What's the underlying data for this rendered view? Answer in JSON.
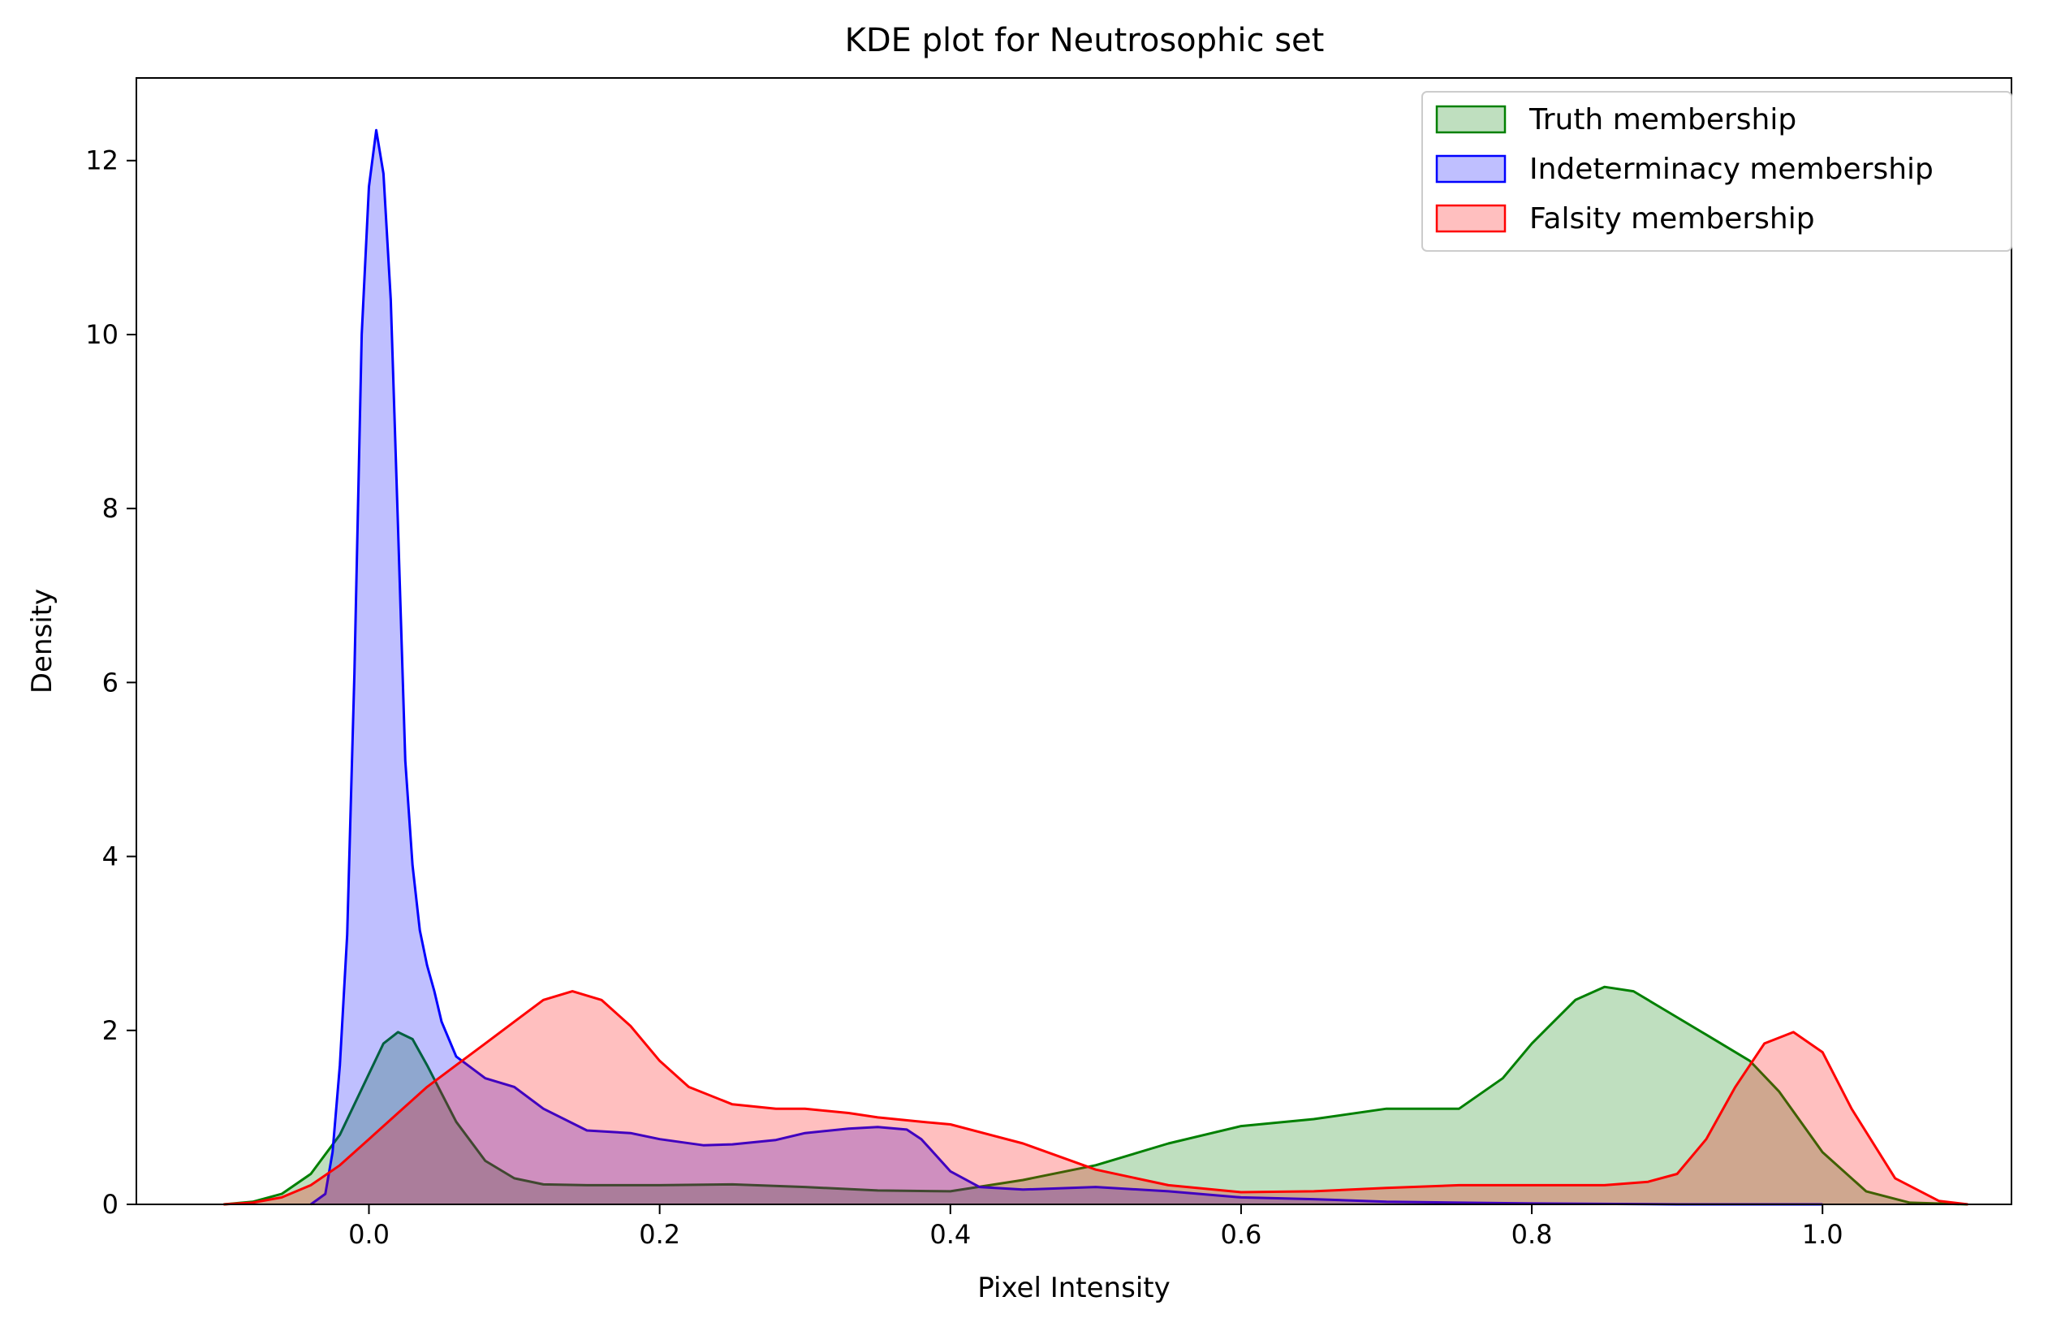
{
  "chart_data": {
    "type": "area",
    "title": "KDE plot for Neutrosophic set",
    "xlabel": "Pixel Intensity",
    "ylabel": "Density",
    "xlim": [
      -0.16,
      1.13
    ],
    "ylim": [
      0,
      12.95
    ],
    "xticks": [
      0.0,
      0.2,
      0.4,
      0.6,
      0.8,
      1.0
    ],
    "xtick_labels": [
      "0.0",
      "0.2",
      "0.4",
      "0.6",
      "0.8",
      "1.0"
    ],
    "yticks": [
      0,
      2,
      4,
      6,
      8,
      10,
      12
    ],
    "ytick_labels": [
      "0",
      "2",
      "4",
      "6",
      "8",
      "10",
      "12"
    ],
    "grid": false,
    "legend_position": "top-right",
    "series": [
      {
        "name": "Truth membership",
        "color": "#008000",
        "fill": "#008000",
        "x": [
          -0.1,
          -0.08,
          -0.06,
          -0.04,
          -0.02,
          0.0,
          0.01,
          0.02,
          0.03,
          0.04,
          0.06,
          0.08,
          0.1,
          0.12,
          0.15,
          0.2,
          0.25,
          0.3,
          0.35,
          0.4,
          0.45,
          0.5,
          0.55,
          0.6,
          0.65,
          0.7,
          0.75,
          0.78,
          0.8,
          0.83,
          0.85,
          0.87,
          0.89,
          0.92,
          0.95,
          0.97,
          1.0,
          1.03,
          1.06,
          1.1
        ],
        "y": [
          0.0,
          0.03,
          0.12,
          0.35,
          0.8,
          1.5,
          1.85,
          1.98,
          1.9,
          1.6,
          0.95,
          0.5,
          0.3,
          0.23,
          0.22,
          0.22,
          0.23,
          0.2,
          0.16,
          0.15,
          0.28,
          0.45,
          0.7,
          0.9,
          0.98,
          1.1,
          1.1,
          1.45,
          1.85,
          2.35,
          2.5,
          2.45,
          2.25,
          1.95,
          1.65,
          1.3,
          0.6,
          0.15,
          0.02,
          0.0
        ]
      },
      {
        "name": "Indeterminacy membership",
        "color": "#0000ff",
        "fill": "#0000ff",
        "x": [
          -0.04,
          -0.03,
          -0.025,
          -0.02,
          -0.015,
          -0.01,
          -0.005,
          0.0,
          0.005,
          0.01,
          0.015,
          0.02,
          0.025,
          0.03,
          0.035,
          0.04,
          0.045,
          0.05,
          0.06,
          0.08,
          0.1,
          0.12,
          0.15,
          0.18,
          0.2,
          0.23,
          0.25,
          0.28,
          0.3,
          0.33,
          0.35,
          0.37,
          0.38,
          0.4,
          0.42,
          0.45,
          0.5,
          0.55,
          0.6,
          0.65,
          0.7,
          0.8,
          0.9,
          1.0
        ],
        "y": [
          0.0,
          0.12,
          0.6,
          1.6,
          3.1,
          6.1,
          10.0,
          11.7,
          12.35,
          11.85,
          10.4,
          7.8,
          5.1,
          3.9,
          3.15,
          2.75,
          2.45,
          2.1,
          1.7,
          1.45,
          1.35,
          1.1,
          0.85,
          0.82,
          0.75,
          0.68,
          0.69,
          0.74,
          0.82,
          0.87,
          0.89,
          0.86,
          0.75,
          0.38,
          0.2,
          0.17,
          0.2,
          0.15,
          0.08,
          0.06,
          0.03,
          0.01,
          0.0,
          0.0
        ]
      },
      {
        "name": "Falsity membership",
        "color": "#ff0000",
        "fill": "#ff0000",
        "x": [
          -0.1,
          -0.08,
          -0.06,
          -0.04,
          -0.02,
          0.0,
          0.02,
          0.04,
          0.06,
          0.08,
          0.1,
          0.12,
          0.14,
          0.16,
          0.18,
          0.2,
          0.22,
          0.25,
          0.28,
          0.3,
          0.33,
          0.35,
          0.38,
          0.4,
          0.45,
          0.5,
          0.55,
          0.6,
          0.65,
          0.7,
          0.75,
          0.8,
          0.85,
          0.88,
          0.9,
          0.92,
          0.94,
          0.96,
          0.98,
          1.0,
          1.02,
          1.05,
          1.08,
          1.1
        ],
        "y": [
          0.0,
          0.02,
          0.08,
          0.22,
          0.45,
          0.75,
          1.05,
          1.35,
          1.6,
          1.85,
          2.1,
          2.35,
          2.45,
          2.35,
          2.05,
          1.65,
          1.35,
          1.15,
          1.1,
          1.1,
          1.05,
          1.0,
          0.95,
          0.92,
          0.7,
          0.4,
          0.22,
          0.14,
          0.15,
          0.19,
          0.22,
          0.22,
          0.22,
          0.26,
          0.35,
          0.75,
          1.35,
          1.85,
          1.98,
          1.75,
          1.1,
          0.3,
          0.04,
          0.0
        ]
      }
    ]
  }
}
